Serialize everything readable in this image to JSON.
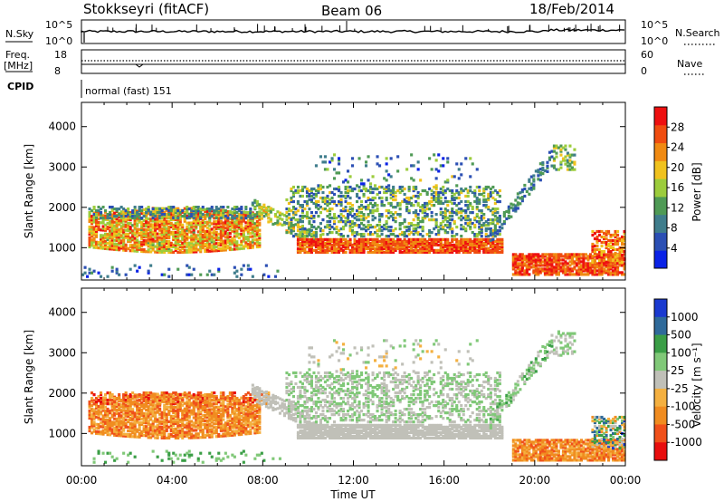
{
  "header": {
    "station": "Stokkseyri (fitACF)",
    "beam": "Beam 06",
    "date": "18/Feb/2014"
  },
  "noise_panel": {
    "left_label": "N.Sky",
    "left_ticks": [
      "10^5",
      "10^0"
    ],
    "right_label": "N.Search",
    "right_ticks": [
      "10^5",
      "10^0"
    ]
  },
  "freq_panel": {
    "left_label_1": "Freq.",
    "left_label_2": "[MHz]",
    "left_ticks": [
      "18",
      "8"
    ],
    "right_label": "Nave",
    "right_ticks": [
      "60",
      "0"
    ]
  },
  "cpid": {
    "label": "CPID",
    "value": "normal (fast) 151"
  },
  "colors": {
    "power_scale": [
      "#0a22e6",
      "#2b4fb4",
      "#3f7d8c",
      "#4f9a55",
      "#9ccc3c",
      "#f0c21e",
      "#f08a12",
      "#f04d10",
      "#ee1010"
    ],
    "velocity_scale": [
      "#e80e0e",
      "#f0501a",
      "#f08c20",
      "#f4b040",
      "#c0c0b8",
      "#80c878",
      "#3a9e46",
      "#2f6a9a",
      "#1a3ad0"
    ]
  },
  "chart_data": [
    {
      "type": "heatmap",
      "name_printed": "",
      "xlabel": "Time UT",
      "ylabel": "Slant Range [km]",
      "x_ticks": [
        "00:00",
        "04:00",
        "08:00",
        "12:00",
        "16:00",
        "20:00",
        "00:00"
      ],
      "y_ticks": [
        "1000",
        "2000",
        "3000",
        "4000"
      ],
      "xlim_hours": [
        0,
        24
      ],
      "ylim_km": [
        200,
        4600
      ],
      "colorbar_label": "Power [dB]",
      "colorbar_ticks": [
        "4",
        "8",
        "12",
        "16",
        "20",
        "24",
        "28"
      ],
      "colorbar_range": [
        0,
        32
      ]
    },
    {
      "type": "heatmap",
      "name_printed": "",
      "xlabel": "Time UT",
      "ylabel": "Slant Range [km]",
      "x_ticks": [
        "00:00",
        "04:00",
        "08:00",
        "12:00",
        "16:00",
        "20:00",
        "00:00"
      ],
      "y_ticks": [
        "1000",
        "2000",
        "3000",
        "4000"
      ],
      "xlim_hours": [
        0,
        24
      ],
      "ylim_km": [
        200,
        4600
      ],
      "colorbar_label": "Velocity [m s⁻¹]",
      "colorbar_ticks": [
        "1000",
        "500",
        "100",
        "25",
        "-25",
        "-100",
        "-500",
        "-1000"
      ]
    }
  ]
}
